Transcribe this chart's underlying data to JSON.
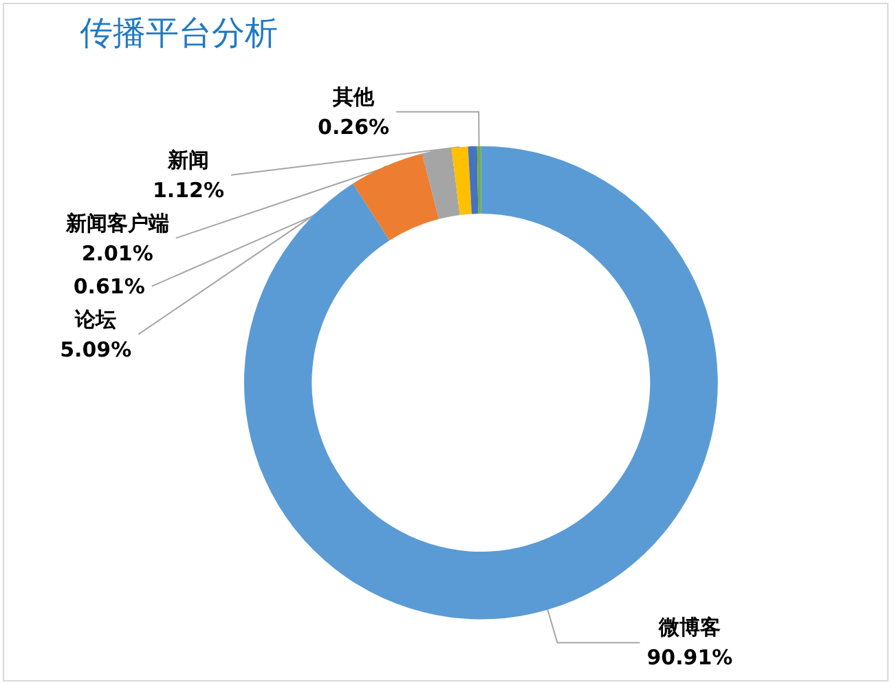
{
  "chart_data": {
    "type": "donut",
    "title": "传播平台分析",
    "categories": [
      "微博客",
      "论坛",
      "新闻客户端",
      "新闻",
      null,
      "其他"
    ],
    "values": [
      90.91,
      5.09,
      2.01,
      1.12,
      0.61,
      0.26
    ],
    "value_labels": [
      "90.91%",
      "5.09%",
      "2.01%",
      "1.12%",
      "0.61%",
      "0.26%"
    ],
    "colors": [
      "#5b9bd5",
      "#ed7d31",
      "#a5a5a5",
      "#ffc000",
      "#4472c4",
      "#70ad47"
    ],
    "legend": false
  }
}
